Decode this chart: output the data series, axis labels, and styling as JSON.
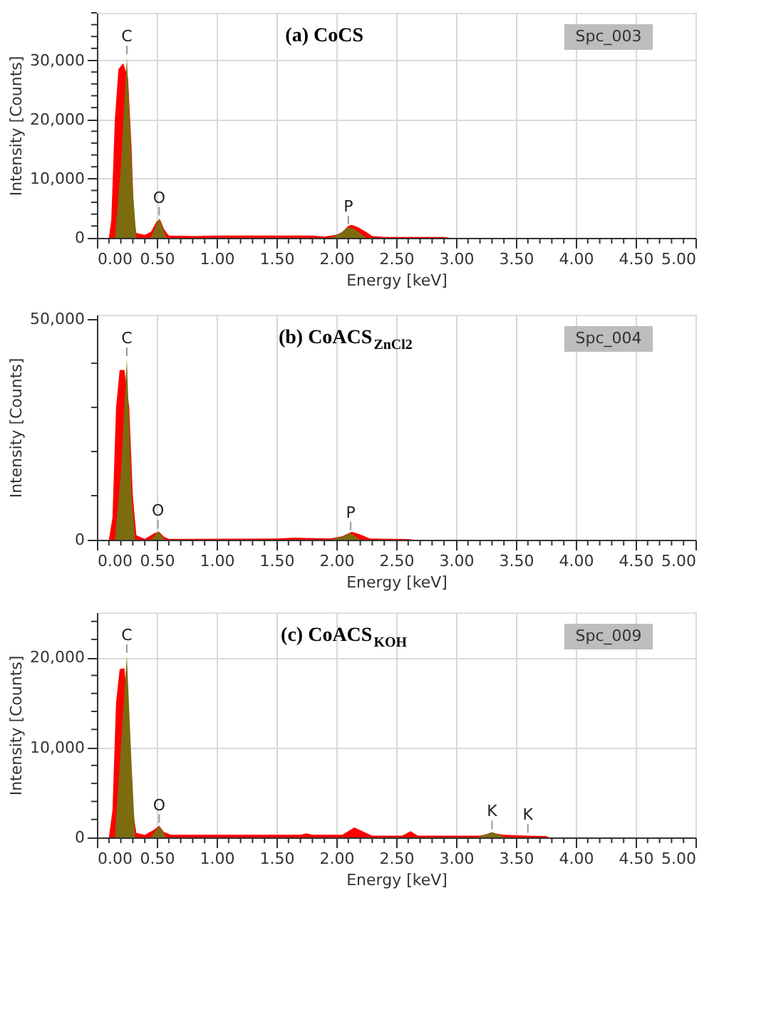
{
  "chart_data": [
    {
      "type": "area",
      "title": "(a) CoCS",
      "xlabel": "Energy [keV]",
      "ylabel": "Intensity [Counts]",
      "legend": false,
      "grid": true,
      "xlim": [
        0,
        5
      ],
      "ylim": [
        0,
        38000
      ],
      "xticks": [
        {
          "value": 0,
          "label": "0.00"
        },
        {
          "value": 0.1,
          "label": null
        },
        {
          "value": 0.2,
          "label": null
        },
        {
          "value": 0.3,
          "label": null
        },
        {
          "value": 0.4,
          "label": null
        },
        {
          "value": 0.5,
          "label": "0.50"
        },
        {
          "value": 0.6,
          "label": null
        },
        {
          "value": 0.7,
          "label": null
        },
        {
          "value": 0.8,
          "label": null
        },
        {
          "value": 0.9,
          "label": null
        },
        {
          "value": 1,
          "label": "1.00"
        },
        {
          "value": 1.1,
          "label": null
        },
        {
          "value": 1.2,
          "label": null
        },
        {
          "value": 1.3,
          "label": null
        },
        {
          "value": 1.4,
          "label": null
        },
        {
          "value": 1.5,
          "label": "1.50"
        },
        {
          "value": 1.6,
          "label": null
        },
        {
          "value": 1.7,
          "label": null
        },
        {
          "value": 1.8,
          "label": null
        },
        {
          "value": 1.9,
          "label": null
        },
        {
          "value": 2,
          "label": "2.00"
        },
        {
          "value": 2.1,
          "label": null
        },
        {
          "value": 2.2,
          "label": null
        },
        {
          "value": 2.3,
          "label": null
        },
        {
          "value": 2.4,
          "label": null
        },
        {
          "value": 2.5,
          "label": "2.50"
        },
        {
          "value": 2.6,
          "label": null
        },
        {
          "value": 2.7,
          "label": null
        },
        {
          "value": 2.8,
          "label": null
        },
        {
          "value": 2.9,
          "label": null
        },
        {
          "value": 3,
          "label": "3.00"
        },
        {
          "value": 3.1,
          "label": null
        },
        {
          "value": 3.2,
          "label": null
        },
        {
          "value": 3.3,
          "label": null
        },
        {
          "value": 3.4,
          "label": null
        },
        {
          "value": 3.5,
          "label": "3.50"
        },
        {
          "value": 3.6,
          "label": null
        },
        {
          "value": 3.7,
          "label": null
        },
        {
          "value": 3.8,
          "label": null
        },
        {
          "value": 3.9,
          "label": null
        },
        {
          "value": 4,
          "label": "4.00"
        },
        {
          "value": 4.1,
          "label": null
        },
        {
          "value": 4.2,
          "label": null
        },
        {
          "value": 4.3,
          "label": null
        },
        {
          "value": 4.4,
          "label": null
        },
        {
          "value": 4.5,
          "label": "4.50"
        },
        {
          "value": 4.6,
          "label": null
        },
        {
          "value": 4.7,
          "label": null
        },
        {
          "value": 4.8,
          "label": null
        },
        {
          "value": 4.9,
          "label": null
        },
        {
          "value": 5,
          "label": "5.00"
        }
      ],
      "yticks": [
        0,
        {
          "value": 2000,
          "label": null
        },
        {
          "value": 4000,
          "label": null
        },
        {
          "value": 6000,
          "label": null
        },
        {
          "value": 8000,
          "label": null
        },
        {
          "value": 10000,
          "label": "10,000"
        },
        {
          "value": 12000,
          "label": null
        },
        {
          "value": 14000,
          "label": null
        },
        {
          "value": 16000,
          "label": null
        },
        {
          "value": 18000,
          "label": null
        },
        {
          "value": 20000,
          "label": "20,000"
        },
        {
          "value": 22000,
          "label": null
        },
        {
          "value": 24000,
          "label": null
        },
        {
          "value": 26000,
          "label": null
        },
        {
          "value": 28000,
          "label": null
        },
        {
          "value": 30000,
          "label": "30,000"
        },
        {
          "value": 32000,
          "label": null
        },
        {
          "value": 34000,
          "label": null
        },
        {
          "value": 36000,
          "label": null
        },
        {
          "value": 38000,
          "label": null
        }
      ],
      "series": [
        {
          "color": "#ff0000",
          "x": [
            0.08,
            0.1,
            0.12,
            0.15,
            0.18,
            0.22,
            0.26,
            0.29,
            0.31,
            0.33,
            0.4,
            0.45,
            0.5,
            0.53,
            0.56,
            0.6,
            0.8,
            1.0,
            1.5,
            1.8,
            1.9,
            2.0,
            2.05,
            2.1,
            2.13,
            2.18,
            2.25,
            2.3,
            2.4,
            2.9,
            2.95,
            5.0
          ],
          "values": [
            0,
            0,
            3000,
            20000,
            28500,
            29500,
            27000,
            15000,
            3000,
            800,
            500,
            1000,
            2800,
            3000,
            1500,
            400,
            300,
            400,
            400,
            400,
            200,
            500,
            1000,
            2000,
            2200,
            1800,
            1000,
            300,
            150,
            150,
            0,
            0
          ]
        },
        {
          "color": "#7d6b10",
          "x": [
            0.15,
            0.2,
            0.25,
            0.3,
            0.33,
            0.45,
            0.52,
            0.58,
            1.95,
            2.02,
            2.1,
            2.15,
            2.25
          ],
          "values": [
            0,
            12000,
            30500,
            8000,
            0,
            0,
            3300,
            0,
            0,
            600,
            1800,
            1500,
            0
          ]
        }
      ],
      "annotations": [
        "Spc_003",
        {
          "text": "C",
          "x": 0.25,
          "y": 30500
        },
        {
          "text": "O",
          "x": 0.52,
          "y": 3300
        },
        {
          "text": "P",
          "x": 2.1,
          "y": 1800
        }
      ]
    },
    {
      "type": "area",
      "title": "(b) CoACS$_{ZnCl2}$",
      "xlabel": "Energy [keV]",
      "ylabel": "Intensity [Counts]",
      "legend": false,
      "grid": "x",
      "xlim": [
        0,
        5
      ],
      "ylim": [
        0,
        51000
      ],
      "xticks": [
        {
          "value": 0,
          "label": "0.00"
        },
        {
          "value": 0.1,
          "label": null
        },
        {
          "value": 0.2,
          "label": null
        },
        {
          "value": 0.3,
          "label": null
        },
        {
          "value": 0.4,
          "label": null
        },
        {
          "value": 0.5,
          "label": "0.50"
        },
        {
          "value": 0.6,
          "label": null
        },
        {
          "value": 0.7,
          "label": null
        },
        {
          "value": 0.8,
          "label": null
        },
        {
          "value": 0.9,
          "label": null
        },
        {
          "value": 1,
          "label": "1.00"
        },
        {
          "value": 1.1,
          "label": null
        },
        {
          "value": 1.2,
          "label": null
        },
        {
          "value": 1.3,
          "label": null
        },
        {
          "value": 1.4,
          "label": null
        },
        {
          "value": 1.5,
          "label": "1.50"
        },
        {
          "value": 1.6,
          "label": null
        },
        {
          "value": 1.7,
          "label": null
        },
        {
          "value": 1.8,
          "label": null
        },
        {
          "value": 1.9,
          "label": null
        },
        {
          "value": 2,
          "label": "2.00"
        },
        {
          "value": 2.1,
          "label": null
        },
        {
          "value": 2.2,
          "label": null
        },
        {
          "value": 2.3,
          "label": null
        },
        {
          "value": 2.4,
          "label": null
        },
        {
          "value": 2.5,
          "label": "2.50"
        },
        {
          "value": 2.6,
          "label": null
        },
        {
          "value": 2.7,
          "label": null
        },
        {
          "value": 2.8,
          "label": null
        },
        {
          "value": 2.9,
          "label": null
        },
        {
          "value": 3,
          "label": "3.00"
        },
        {
          "value": 3.1,
          "label": null
        },
        {
          "value": 3.2,
          "label": null
        },
        {
          "value": 3.3,
          "label": null
        },
        {
          "value": 3.4,
          "label": null
        },
        {
          "value": 3.5,
          "label": "3.50"
        },
        {
          "value": 3.6,
          "label": null
        },
        {
          "value": 3.7,
          "label": null
        },
        {
          "value": 3.8,
          "label": null
        },
        {
          "value": 3.9,
          "label": null
        },
        {
          "value": 4,
          "label": "4.00"
        },
        {
          "value": 4.1,
          "label": null
        },
        {
          "value": 4.2,
          "label": null
        },
        {
          "value": 4.3,
          "label": null
        },
        {
          "value": 4.4,
          "label": null
        },
        {
          "value": 4.5,
          "label": "4.50"
        },
        {
          "value": 4.6,
          "label": null
        },
        {
          "value": 4.7,
          "label": null
        },
        {
          "value": 4.8,
          "label": null
        },
        {
          "value": 4.9,
          "label": null
        },
        {
          "value": 5,
          "label": "5.00"
        }
      ],
      "yticks": [
        0,
        {
          "value": 10000,
          "label": null
        },
        {
          "value": 20000,
          "label": null
        },
        {
          "value": 30000,
          "label": null
        },
        {
          "value": 40000,
          "label": null
        },
        {
          "value": 50000,
          "label": "50,000"
        }
      ],
      "series": [
        {
          "color": "#ff0000",
          "x": [
            0.08,
            0.1,
            0.13,
            0.16,
            0.19,
            0.23,
            0.27,
            0.3,
            0.33,
            0.4,
            0.48,
            0.52,
            0.56,
            0.6,
            1.5,
            1.65,
            1.75,
            1.95,
            2.05,
            2.13,
            2.2,
            2.28,
            2.6,
            2.65,
            5.0
          ],
          "values": [
            0,
            0,
            5000,
            30000,
            38500,
            38500,
            30000,
            10000,
            1000,
            200,
            1500,
            1800,
            700,
            200,
            300,
            500,
            400,
            300,
            800,
            1800,
            1200,
            300,
            150,
            0,
            0
          ]
        },
        {
          "color": "#7d6b10",
          "x": [
            0.15,
            0.2,
            0.25,
            0.29,
            0.32,
            0.45,
            0.51,
            0.57,
            1.95,
            2.05,
            2.12,
            2.2
          ],
          "values": [
            0,
            15000,
            41000,
            10000,
            0,
            0,
            1900,
            0,
            0,
            700,
            1500,
            0
          ]
        }
      ],
      "annotations": [
        "Spc_004",
        {
          "text": "C",
          "x": 0.25,
          "y": 41000
        },
        {
          "text": "O",
          "x": 0.51,
          "y": 1900
        },
        {
          "text": "P",
          "x": 2.12,
          "y": 1500
        }
      ]
    },
    {
      "type": "area",
      "title": "(c) CoACS$_{KOH}$",
      "xlabel": "Energy [keV]",
      "ylabel": "Intensity [Counts]",
      "legend": false,
      "grid": true,
      "xlim": [
        0,
        5
      ],
      "ylim": [
        0,
        25000
      ],
      "xticks": [
        {
          "value": 0,
          "label": "0.00"
        },
        {
          "value": 0.1,
          "label": null
        },
        {
          "value": 0.2,
          "label": null
        },
        {
          "value": 0.3,
          "label": null
        },
        {
          "value": 0.4,
          "label": null
        },
        {
          "value": 0.5,
          "label": "0.50"
        },
        {
          "value": 0.6,
          "label": null
        },
        {
          "value": 0.7,
          "label": null
        },
        {
          "value": 0.8,
          "label": null
        },
        {
          "value": 0.9,
          "label": null
        },
        {
          "value": 1,
          "label": "1.00"
        },
        {
          "value": 1.1,
          "label": null
        },
        {
          "value": 1.2,
          "label": null
        },
        {
          "value": 1.3,
          "label": null
        },
        {
          "value": 1.4,
          "label": null
        },
        {
          "value": 1.5,
          "label": "1.50"
        },
        {
          "value": 1.6,
          "label": null
        },
        {
          "value": 1.7,
          "label": null
        },
        {
          "value": 1.8,
          "label": null
        },
        {
          "value": 1.9,
          "label": null
        },
        {
          "value": 2,
          "label": "2.00"
        },
        {
          "value": 2.1,
          "label": null
        },
        {
          "value": 2.2,
          "label": null
        },
        {
          "value": 2.3,
          "label": null
        },
        {
          "value": 2.4,
          "label": null
        },
        {
          "value": 2.5,
          "label": "2.50"
        },
        {
          "value": 2.6,
          "label": null
        },
        {
          "value": 2.7,
          "label": null
        },
        {
          "value": 2.8,
          "label": null
        },
        {
          "value": 2.9,
          "label": null
        },
        {
          "value": 3,
          "label": "3.00"
        },
        {
          "value": 3.1,
          "label": null
        },
        {
          "value": 3.2,
          "label": null
        },
        {
          "value": 3.3,
          "label": null
        },
        {
          "value": 3.4,
          "label": null
        },
        {
          "value": 3.5,
          "label": "3.50"
        },
        {
          "value": 3.6,
          "label": null
        },
        {
          "value": 3.7,
          "label": null
        },
        {
          "value": 3.8,
          "label": null
        },
        {
          "value": 3.9,
          "label": null
        },
        {
          "value": 4,
          "label": "4.00"
        },
        {
          "value": 4.1,
          "label": null
        },
        {
          "value": 4.2,
          "label": null
        },
        {
          "value": 4.3,
          "label": null
        },
        {
          "value": 4.4,
          "label": null
        },
        {
          "value": 4.5,
          "label": "4.50"
        },
        {
          "value": 4.6,
          "label": null
        },
        {
          "value": 4.7,
          "label": null
        },
        {
          "value": 4.8,
          "label": null
        },
        {
          "value": 4.9,
          "label": null
        },
        {
          "value": 5,
          "label": "5.00"
        }
      ],
      "yticks": [
        0,
        {
          "value": 2000,
          "label": null
        },
        {
          "value": 4000,
          "label": null
        },
        {
          "value": 6000,
          "label": null
        },
        {
          "value": 8000,
          "label": null
        },
        {
          "value": 10000,
          "label": "10,000"
        },
        {
          "value": 12000,
          "label": null
        },
        {
          "value": 14000,
          "label": null
        },
        {
          "value": 16000,
          "label": null
        },
        {
          "value": 18000,
          "label": null
        },
        {
          "value": 20000,
          "label": "20,000"
        },
        {
          "value": 22000,
          "label": null
        },
        {
          "value": 24000,
          "label": null
        }
      ],
      "series": [
        {
          "color": "#ff0000",
          "x": [
            0.08,
            0.1,
            0.13,
            0.16,
            0.19,
            0.23,
            0.27,
            0.3,
            0.33,
            0.4,
            0.47,
            0.52,
            0.56,
            0.62,
            1.7,
            1.75,
            1.8,
            2.05,
            2.15,
            2.25,
            2.3,
            2.55,
            2.62,
            2.68,
            3.2,
            3.3,
            3.4,
            3.6,
            3.75,
            3.78,
            5.0
          ],
          "values": [
            0,
            0,
            3000,
            15000,
            18700,
            18800,
            12000,
            3000,
            500,
            300,
            800,
            1300,
            600,
            300,
            300,
            450,
            300,
            300,
            1100,
            500,
            200,
            200,
            700,
            200,
            200,
            500,
            300,
            200,
            150,
            0,
            0
          ]
        },
        {
          "color": "#7d6b10",
          "x": [
            0.15,
            0.2,
            0.25,
            0.29,
            0.32,
            0.45,
            0.52,
            0.58,
            3.18,
            3.3,
            3.42
          ],
          "values": [
            0,
            10000,
            20200,
            8000,
            0,
            0,
            1300,
            0,
            0,
            600,
            0
          ]
        }
      ],
      "annotations": [
        "Spc_009",
        {
          "text": "C",
          "x": 0.25,
          "y": 20200
        },
        {
          "text": "O",
          "x": 0.52,
          "y": 1300
        },
        {
          "text": "K",
          "x": 3.3,
          "y": 600
        },
        {
          "text": "K",
          "x": 3.6,
          "y": 200
        }
      ]
    }
  ]
}
